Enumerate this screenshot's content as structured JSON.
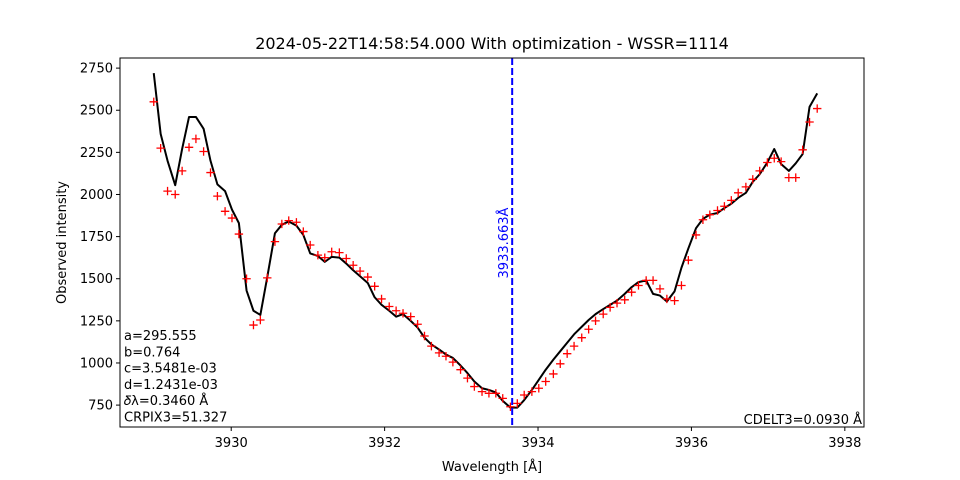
{
  "chart_data": {
    "type": "line",
    "title": "2024-05-22T14:58:54.000 With optimization - WSSR=1114",
    "xlabel": "Wavelength [Å]",
    "ylabel": "Observed intensity",
    "xlim": [
      3928.55,
      3938.25
    ],
    "ylim": [
      620,
      2810
    ],
    "xticks": [
      3930,
      3932,
      3934,
      3936,
      3938
    ],
    "yticks": [
      750,
      1000,
      1250,
      1500,
      1750,
      2000,
      2250,
      2500,
      2750
    ],
    "grid": false,
    "legend": "none",
    "vline": {
      "x": 3933.663,
      "label": "3933.663Å",
      "color": "#0000ff"
    },
    "left_annotations": [
      "a=295.555",
      "b=0.764",
      "c=3.5481e-03",
      "d=1.2431e-03",
      "𝛿λ=0.3460 Å",
      "CRPIX3=51.327"
    ],
    "right_annotation": "CDELT3=0.0930 Å",
    "observed": {
      "marker": "+",
      "color": "#ff0000",
      "x": [
        3928.99,
        3929.08,
        3929.17,
        3929.27,
        3929.36,
        3929.45,
        3929.54,
        3929.64,
        3929.73,
        3929.82,
        3929.92,
        3930.01,
        3930.1,
        3930.2,
        3930.29,
        3930.38,
        3930.47,
        3930.57,
        3930.66,
        3930.75,
        3930.85,
        3930.94,
        3931.03,
        3931.13,
        3931.22,
        3931.31,
        3931.41,
        3931.5,
        3931.59,
        3931.68,
        3931.78,
        3931.87,
        3931.96,
        3932.06,
        3932.15,
        3932.24,
        3932.34,
        3932.43,
        3932.52,
        3932.61,
        3932.71,
        3932.8,
        3932.89,
        3932.99,
        3933.08,
        3933.17,
        3933.27,
        3933.36,
        3933.45,
        3933.54,
        3933.64,
        3933.73,
        3933.82,
        3933.92,
        3934.01,
        3934.1,
        3934.2,
        3934.29,
        3934.38,
        3934.47,
        3934.57,
        3934.66,
        3934.75,
        3934.85,
        3934.94,
        3935.03,
        3935.13,
        3935.22,
        3935.31,
        3935.41,
        3935.5,
        3935.59,
        3935.68,
        3935.78,
        3935.87,
        3935.96,
        3936.06,
        3936.15,
        3936.24,
        3936.34,
        3936.43,
        3936.52,
        3936.61,
        3936.71,
        3936.8,
        3936.89,
        3936.99,
        3937.08,
        3937.17,
        3937.27,
        3937.36,
        3937.45,
        3937.54,
        3937.64
      ],
      "y": [
        2550,
        2275,
        2020,
        2000,
        2140,
        2280,
        2330,
        2255,
        2130,
        1990,
        1900,
        1860,
        1765,
        1500,
        1225,
        1255,
        1505,
        1720,
        1825,
        1845,
        1835,
        1780,
        1700,
        1640,
        1625,
        1660,
        1655,
        1620,
        1580,
        1545,
        1510,
        1455,
        1380,
        1335,
        1310,
        1295,
        1275,
        1230,
        1160,
        1100,
        1060,
        1040,
        1005,
        960,
        910,
        860,
        830,
        820,
        820,
        790,
        740,
        760,
        810,
        830,
        850,
        890,
        935,
        995,
        1055,
        1100,
        1150,
        1200,
        1250,
        1290,
        1330,
        1355,
        1375,
        1420,
        1460,
        1490,
        1490,
        1440,
        1380,
        1370,
        1460,
        1610,
        1760,
        1850,
        1880,
        1905,
        1930,
        1965,
        2010,
        2045,
        2090,
        2140,
        2190,
        2215,
        2195,
        2100,
        2100,
        2265,
        2430,
        2510
      ]
    },
    "model": {
      "color": "#000000",
      "x": [
        3928.99,
        3929.08,
        3929.17,
        3929.27,
        3929.36,
        3929.45,
        3929.54,
        3929.64,
        3929.73,
        3929.82,
        3929.92,
        3930.01,
        3930.1,
        3930.2,
        3930.29,
        3930.38,
        3930.47,
        3930.57,
        3930.66,
        3930.75,
        3930.85,
        3930.94,
        3931.03,
        3931.13,
        3931.22,
        3931.31,
        3931.41,
        3931.5,
        3931.59,
        3931.68,
        3931.78,
        3931.87,
        3931.96,
        3932.06,
        3932.15,
        3932.24,
        3932.34,
        3932.43,
        3932.52,
        3932.61,
        3932.71,
        3932.8,
        3932.89,
        3932.99,
        3933.08,
        3933.17,
        3933.27,
        3933.36,
        3933.45,
        3933.54,
        3933.64,
        3933.73,
        3933.82,
        3933.92,
        3934.01,
        3934.1,
        3934.2,
        3934.29,
        3934.38,
        3934.47,
        3934.57,
        3934.66,
        3934.75,
        3934.85,
        3934.94,
        3935.03,
        3935.13,
        3935.22,
        3935.31,
        3935.41,
        3935.5,
        3935.59,
        3935.68,
        3935.78,
        3935.87,
        3935.96,
        3936.06,
        3936.15,
        3936.24,
        3936.34,
        3936.43,
        3936.52,
        3936.61,
        3936.71,
        3936.8,
        3936.89,
        3936.99,
        3937.08,
        3937.17,
        3937.27,
        3937.36,
        3937.45,
        3937.54,
        3937.64
      ],
      "y": [
        2720,
        2360,
        2200,
        2055,
        2270,
        2460,
        2460,
        2390,
        2200,
        2060,
        2020,
        1910,
        1830,
        1430,
        1310,
        1285,
        1510,
        1770,
        1820,
        1840,
        1815,
        1760,
        1650,
        1635,
        1600,
        1630,
        1625,
        1590,
        1550,
        1515,
        1475,
        1390,
        1345,
        1310,
        1275,
        1290,
        1250,
        1210,
        1150,
        1110,
        1080,
        1050,
        1030,
        985,
        940,
        890,
        850,
        840,
        825,
        775,
        735,
        735,
        780,
        840,
        900,
        960,
        1020,
        1070,
        1120,
        1170,
        1215,
        1255,
        1290,
        1320,
        1345,
        1370,
        1410,
        1450,
        1480,
        1490,
        1410,
        1400,
        1365,
        1425,
        1565,
        1680,
        1800,
        1855,
        1880,
        1890,
        1920,
        1945,
        1980,
        2010,
        2075,
        2120,
        2190,
        2270,
        2180,
        2140,
        2185,
        2240,
        2520,
        2600
      ]
    }
  }
}
